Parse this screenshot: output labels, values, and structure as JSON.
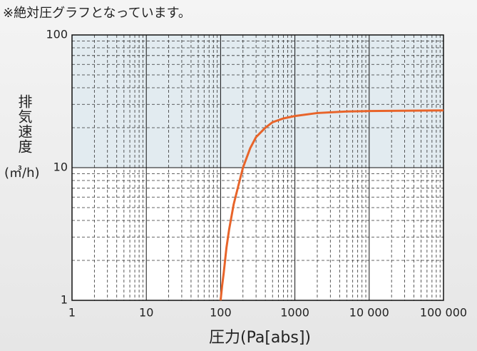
{
  "chart_data": {
    "type": "line",
    "note": "※絶対圧グラフとなっています。",
    "ylabel": "排気速度",
    "yunit": "(㎥/h)",
    "xlabel": "圧力(Pa[abs])",
    "xscale": "log",
    "yscale": "log",
    "grid": true,
    "xlim": [
      1,
      100000
    ],
    "ylim": [
      1,
      100
    ],
    "xticks": [
      1,
      10,
      100,
      1000,
      {
        "value": 10000,
        "label": "10 000"
      },
      {
        "value": 100000,
        "label": "100 000"
      }
    ],
    "yticks": [
      1,
      10,
      100
    ],
    "x": [
      100,
      105,
      110,
      120,
      130,
      150,
      170,
      200,
      250,
      300,
      400,
      500,
      700,
      1000,
      2000,
      5000,
      10000,
      100000
    ],
    "series": [
      {
        "color": "#e8642a",
        "values": [
          1,
          1.3,
          1.6,
          2.5,
          3.4,
          5.3,
          7,
          10,
          14,
          17,
          20,
          22,
          23.5,
          24.5,
          25.8,
          26.5,
          26.7,
          27
        ]
      }
    ]
  }
}
